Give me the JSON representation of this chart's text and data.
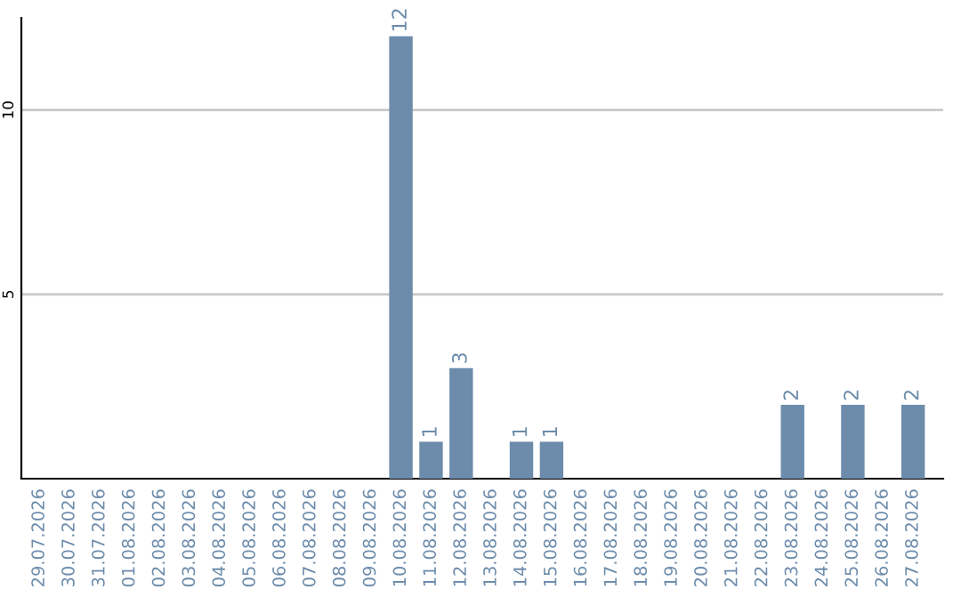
{
  "chart_data": {
    "type": "bar",
    "categories": [
      "29.07.2026",
      "30.07.2026",
      "31.07.2026",
      "01.08.2026",
      "02.08.2026",
      "03.08.2026",
      "04.08.2026",
      "05.08.2026",
      "06.08.2026",
      "07.08.2026",
      "08.08.2026",
      "09.08.2026",
      "10.08.2026",
      "11.08.2026",
      "12.08.2026",
      "13.08.2026",
      "14.08.2026",
      "15.08.2026",
      "16.08.2026",
      "17.08.2026",
      "18.08.2026",
      "19.08.2026",
      "20.08.2026",
      "21.08.2026",
      "22.08.2026",
      "23.08.2026",
      "24.08.2026",
      "25.08.2026",
      "26.08.2026",
      "27.08.2026"
    ],
    "values": [
      0,
      0,
      0,
      0,
      0,
      0,
      0,
      0,
      0,
      0,
      0,
      0,
      12,
      1,
      3,
      0,
      1,
      1,
      0,
      0,
      0,
      0,
      0,
      0,
      0,
      2,
      0,
      2,
      0,
      2
    ],
    "value_labels": [
      null,
      null,
      null,
      null,
      null,
      null,
      null,
      null,
      null,
      null,
      null,
      null,
      "12",
      "1",
      "3",
      null,
      "1",
      "1",
      null,
      null,
      null,
      null,
      null,
      null,
      null,
      "2",
      null,
      "2",
      null,
      "2"
    ],
    "color": "#6d8cab",
    "ylim": [
      0,
      12.5
    ],
    "yticks": [
      5,
      10
    ],
    "grid": "y"
  }
}
